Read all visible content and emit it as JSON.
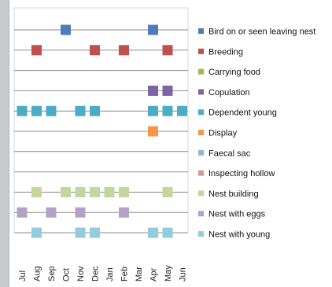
{
  "chart_data": {
    "type": "scatter",
    "x": [
      "Jul",
      "Aug",
      "Sep",
      "Oct",
      "Nov",
      "Dec",
      "Jan",
      "Feb",
      "Mar",
      "Apr",
      "May",
      "Jun"
    ],
    "series": [
      {
        "name": "Bird on or seen leaving nest",
        "color": "#4f7cbd",
        "months": [
          "Oct",
          "Apr"
        ]
      },
      {
        "name": "Breeding",
        "color": "#c0504d",
        "months": [
          "Aug",
          "Dec",
          "Feb",
          "May"
        ]
      },
      {
        "name": "Carrying food",
        "color": "#9bbb59",
        "months": []
      },
      {
        "name": "Copulation",
        "color": "#8064a2",
        "months": [
          "Apr",
          "May"
        ]
      },
      {
        "name": "Dependent young",
        "color": "#4bacc6",
        "months": [
          "Jul",
          "Aug",
          "Sep",
          "Nov",
          "Dec",
          "Apr",
          "May",
          "Jun"
        ]
      },
      {
        "name": "Display",
        "color": "#f79646",
        "months": [
          "Apr"
        ]
      },
      {
        "name": "Faecal  sac",
        "color": "#95b3d7",
        "months": []
      },
      {
        "name": "Inspecting hollow",
        "color": "#d99694",
        "months": []
      },
      {
        "name": "Nest building",
        "color": "#c3d69b",
        "months": [
          "Aug",
          "Oct",
          "Nov",
          "Dec",
          "Jan",
          "Feb",
          "May"
        ]
      },
      {
        "name": "Nest with eggs",
        "color": "#b3a2c7",
        "months": [
          "Jul",
          "Sep",
          "Nov",
          "Feb"
        ]
      },
      {
        "name": "Nest with young",
        "color": "#93cddd",
        "months": [
          "Aug",
          "Nov",
          "Dec",
          "Apr",
          "May"
        ]
      }
    ],
    "grid": true,
    "legend_position": "right"
  }
}
